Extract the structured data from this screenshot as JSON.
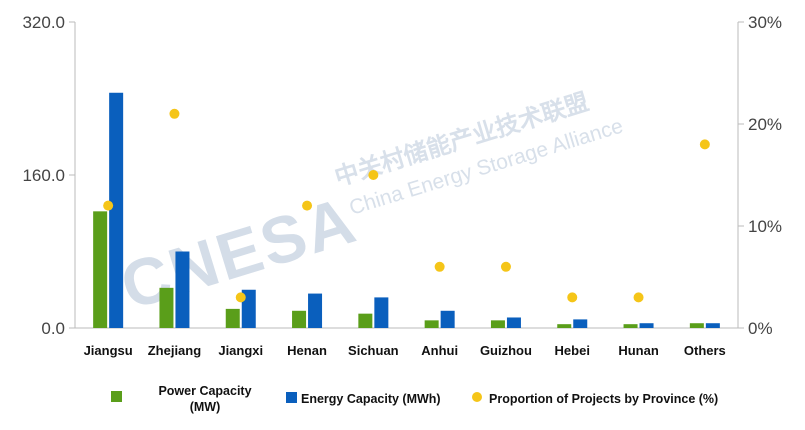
{
  "chart_data": {
    "type": "bar",
    "categories": [
      "Jiangsu",
      "Zhejiang",
      "Jiangxi",
      "Henan",
      "Sichuan",
      "Anhui",
      "Guizhou",
      "Hebei",
      "Hunan",
      "Others"
    ],
    "series": [
      {
        "name": "Power Capacity (MW)",
        "type": "bar",
        "axis": "left",
        "color": "#5a9e1a",
        "values": [
          122,
          42,
          20,
          18,
          15,
          8,
          8,
          4,
          4,
          5
        ]
      },
      {
        "name": "Energy Capacity (MWh)",
        "type": "bar",
        "axis": "left",
        "color": "#0a5fbd",
        "values": [
          246,
          80,
          40,
          36,
          32,
          18,
          11,
          9,
          5,
          5
        ]
      },
      {
        "name": "Proportion of Projects by Province (%)",
        "type": "scatter",
        "axis": "right",
        "color": "#f5c518",
        "values": [
          12,
          21,
          3,
          12,
          15,
          6,
          6,
          3,
          3,
          18
        ]
      }
    ],
    "y_left": {
      "min": 0,
      "max": 320,
      "ticks": [
        0,
        160,
        320
      ],
      "tick_labels": [
        "0.0",
        "160.0",
        "320.0"
      ]
    },
    "y_right": {
      "min": 0,
      "max": 30,
      "ticks": [
        0,
        10,
        20,
        30
      ],
      "tick_labels": [
        "0%",
        "10%",
        "20%",
        "30%"
      ]
    },
    "grid": false,
    "legend_position": "bottom",
    "legend": {
      "power_label_line1": "Power Capacity",
      "power_label_line2": "(MW)",
      "energy_label": "Energy Capacity (MWh)",
      "proportion_label": "Proportion of Projects by Province (%)"
    }
  },
  "watermark": {
    "logo_text": "CNESA",
    "chinese_text": "中关村储能产业技术联盟",
    "english_text": "China Energy Storage Alliance"
  }
}
